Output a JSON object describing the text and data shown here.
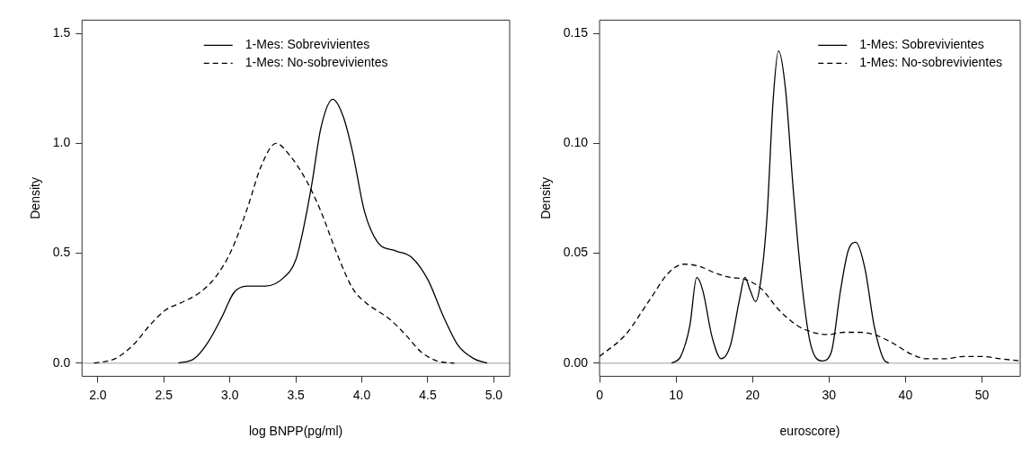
{
  "chart_data": [
    {
      "type": "line",
      "xlabel": "log BNPP(pg/ml)",
      "ylabel": "Density",
      "xlim": [
        1.88,
        5.12
      ],
      "ylim": [
        -0.06,
        1.56
      ],
      "xticks": [
        {
          "value": 2,
          "label": "2.0"
        },
        {
          "value": 2.5,
          "label": "2.5"
        },
        {
          "value": 3,
          "label": "3.0"
        },
        {
          "value": 3.5,
          "label": "3.5"
        },
        {
          "value": 4,
          "label": "4.0"
        },
        {
          "value": 4.5,
          "label": "4.5"
        },
        {
          "value": 5,
          "label": "5.0"
        }
      ],
      "yticks": [
        {
          "value": 0,
          "label": "0.0"
        },
        {
          "value": 0.5,
          "label": "0.5"
        },
        {
          "value": 1,
          "label": "1.0"
        },
        {
          "value": 1.5,
          "label": "1.5"
        }
      ],
      "grid": false,
      "legend": "top",
      "marker": "none",
      "ref_lines": [
        {
          "axis": "y",
          "value": 0,
          "color": "#bebebe"
        }
      ],
      "series": [
        {
          "name": "1-Mes: Sobrevivientes",
          "color": "#000000",
          "line_style": "solid",
          "x": [
            2.61,
            2.73,
            2.84,
            2.94,
            3.03,
            3.13,
            3.27,
            3.41,
            3.5,
            3.55,
            3.62,
            3.69,
            3.78,
            3.86,
            3.93,
            4.02,
            4.12,
            4.26,
            4.38,
            4.5,
            4.62,
            4.73,
            4.85,
            4.95
          ],
          "values": [
            0,
            0.02,
            0.1,
            0.21,
            0.32,
            0.35,
            0.35,
            0.39,
            0.47,
            0.59,
            0.81,
            1.07,
            1.2,
            1.12,
            0.96,
            0.69,
            0.55,
            0.51,
            0.48,
            0.38,
            0.21,
            0.08,
            0.02,
            0
          ]
        },
        {
          "name": "1-Mes: No-sobrevivientes",
          "color": "#000000",
          "line_style": "dashed",
          "x": [
            1.97,
            2.13,
            2.28,
            2.39,
            2.51,
            2.65,
            2.77,
            2.89,
            3.01,
            3.13,
            3.24,
            3.35,
            3.46,
            3.58,
            3.69,
            3.81,
            3.93,
            4.02,
            4.21,
            4.33,
            4.45,
            4.57,
            4.7
          ],
          "values": [
            0,
            0.02,
            0.09,
            0.17,
            0.24,
            0.28,
            0.32,
            0.39,
            0.51,
            0.7,
            0.9,
            1.0,
            0.94,
            0.83,
            0.69,
            0.5,
            0.34,
            0.28,
            0.2,
            0.13,
            0.05,
            0.01,
            0
          ]
        }
      ]
    },
    {
      "type": "line",
      "xlabel": "euroscore)",
      "ylabel": "Density",
      "xlim": [
        0,
        55
      ],
      "ylim": [
        -0.006,
        0.156
      ],
      "xticks": [
        0,
        10,
        20,
        30,
        40,
        50
      ],
      "yticks": [
        {
          "value": 0,
          "label": "0.00"
        },
        {
          "value": 0.05,
          "label": "0.05"
        },
        {
          "value": 0.1,
          "label": "0.10"
        },
        {
          "value": 0.15,
          "label": "0.15"
        }
      ],
      "grid": false,
      "legend": "top right",
      "marker": "none",
      "ref_lines": [
        {
          "axis": "y",
          "value": 0,
          "color": "#bebebe"
        }
      ],
      "series": [
        {
          "name": "1-Mes: Sobrevivientes",
          "color": "#000000",
          "line_style": "solid",
          "x": [
            9.4,
            10.6,
            11.8,
            12.7,
            13.5,
            14.7,
            15.9,
            17.1,
            18.3,
            19.0,
            19.7,
            20.4,
            21.1,
            21.9,
            22.7,
            23.4,
            24.3,
            25.3,
            26.3,
            27.5,
            29.1,
            30.3,
            31.5,
            32.5,
            33.5,
            34.7,
            35.9,
            37.1,
            37.8
          ],
          "values": [
            0,
            0.003,
            0.017,
            0.039,
            0.033,
            0.012,
            0.002,
            0.008,
            0.029,
            0.039,
            0.033,
            0.028,
            0.038,
            0.067,
            0.12,
            0.142,
            0.125,
            0.08,
            0.041,
            0.01,
            0.001,
            0.005,
            0.033,
            0.051,
            0.055,
            0.043,
            0.017,
            0.002,
            0
          ]
        },
        {
          "name": "1-Mes: No-sobrevivientes",
          "color": "#000000",
          "line_style": "dashed",
          "x": [
            0,
            3.4,
            6.6,
            9.0,
            11.0,
            13.1,
            15.1,
            17.1,
            19.1,
            21.1,
            23.5,
            25.9,
            27.9,
            29.9,
            31.9,
            33.9,
            35.9,
            38.4,
            40.8,
            42.8,
            45.2,
            47.6,
            50.0,
            52.4,
            55.0
          ],
          "values": [
            0.003,
            0.013,
            0.029,
            0.041,
            0.045,
            0.044,
            0.041,
            0.039,
            0.038,
            0.034,
            0.024,
            0.017,
            0.014,
            0.013,
            0.014,
            0.014,
            0.013,
            0.009,
            0.004,
            0.002,
            0.002,
            0.003,
            0.003,
            0.002,
            0.001
          ]
        }
      ]
    }
  ]
}
